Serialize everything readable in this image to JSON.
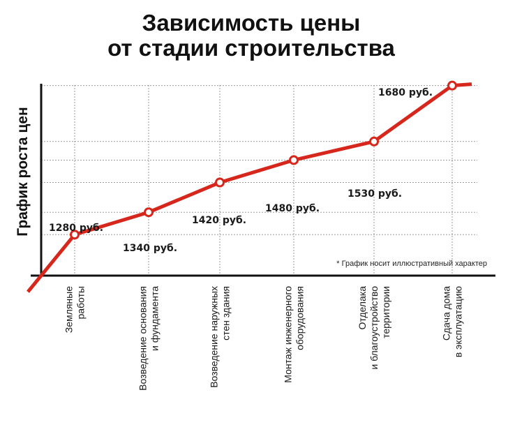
{
  "chart_data": {
    "type": "line",
    "title_lines": [
      "Зависимость цены",
      "от стадии строительства"
    ],
    "ylabel": "График роста цен",
    "note": "* График носит иллюстративный характер",
    "categories": [
      [
        "Земляные",
        "работы"
      ],
      [
        "Возведение основания",
        "и фундамента"
      ],
      [
        "Возведение наружных",
        "стен здания"
      ],
      [
        "Монтаж инженерного",
        "оборудования"
      ],
      [
        "Отделака",
        "и благоустройство",
        "территории"
      ],
      [
        "Сдача дома",
        "в эксплуатацию"
      ]
    ],
    "values": [
      1280,
      1340,
      1420,
      1480,
      1530,
      1680
    ],
    "data_labels": [
      "1280 руб.",
      "1340 руб.",
      "1420 руб.",
      "1480 руб.",
      "1530 руб.",
      "1680 руб."
    ],
    "ylim": [
      1170,
      1700
    ],
    "grid": true,
    "line_color": "#d7261c",
    "axis_color": "#111111",
    "grid_color": "#9a9a9a"
  }
}
